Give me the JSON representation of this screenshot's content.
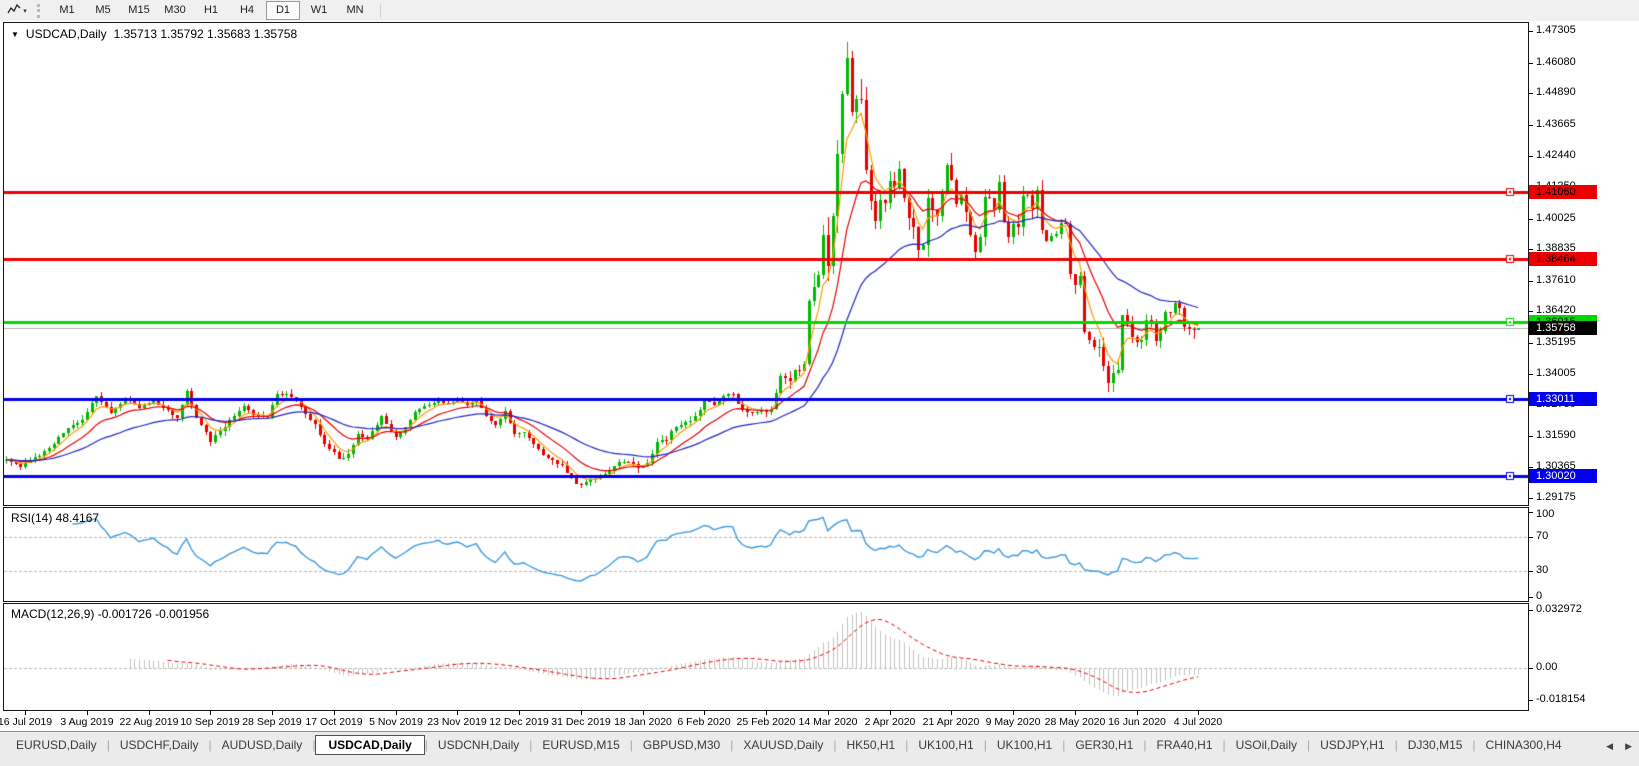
{
  "toolbar": {
    "chart_type_icon": "line-chart-icon",
    "dropdown_icon": "chevron-down-icon",
    "periods": [
      "M1",
      "M5",
      "M15",
      "M30",
      "H1",
      "H4",
      "D1",
      "W1",
      "MN"
    ],
    "active_period": "D1"
  },
  "chart_header": {
    "collapse_icon": "triangle-down-icon",
    "title": "USDCAD,Daily",
    "ohlc": "1.35713 1.35792 1.35683 1.35758"
  },
  "price_axis": {
    "ticks": [
      "1.47305",
      "1.46080",
      "1.44890",
      "1.43665",
      "1.42440",
      "1.41250",
      "1.40025",
      "1.38835",
      "1.37610",
      "1.36420",
      "1.35195",
      "1.34005",
      "1.32780",
      "1.31590",
      "1.30365",
      "1.29175"
    ],
    "badges": [
      {
        "text": "1.41060",
        "value": 1.4106,
        "bg": "#ef0000",
        "fg": "#000000"
      },
      {
        "text": "1.38464",
        "value": 1.38464,
        "bg": "#ef0000",
        "fg": "#000000"
      },
      {
        "text": "1.36015",
        "value": 1.36015,
        "bg": "#00d800",
        "fg": "#000000"
      },
      {
        "text": "1.35758",
        "value": 1.35758,
        "bg": "#000000",
        "fg": "#ffffff"
      },
      {
        "text": "1.33011",
        "value": 1.33011,
        "bg": "#0000ee",
        "fg": "#ffffff"
      },
      {
        "text": "1.30020",
        "value": 1.3002,
        "bg": "#0000ee",
        "fg": "#ffffff"
      }
    ]
  },
  "rsi_panel": {
    "label": "RSI(14) 48.4167",
    "value": 48.4167,
    "line_color": "#3e9ade",
    "levels": [
      70,
      30
    ],
    "axis": [
      {
        "text": "100",
        "value": 100
      },
      {
        "text": "70",
        "value": 70
      },
      {
        "text": "30",
        "value": 30
      },
      {
        "text": "0",
        "value": 0
      }
    ]
  },
  "macd_panel": {
    "label": "MACD(12,26,9) -0.001726 -0.001956",
    "macd_value": -0.001726,
    "signal_value": -0.001956,
    "histogram_color": "#c2c2c2",
    "signal_color": "#ee0000",
    "range": [
      -0.018154,
      0.032972
    ],
    "axis": [
      {
        "text": "0.032972",
        "value": 0.032972
      },
      {
        "text": "0.00",
        "value": 0
      },
      {
        "text": "-0.018154",
        "value": -0.018154
      }
    ]
  },
  "x_axis": {
    "labels": [
      "16 Jul 2019",
      "3 Aug 2019",
      "22 Aug 2019",
      "10 Sep 2019",
      "28 Sep 2019",
      "17 Oct 2019",
      "5 Nov 2019",
      "23 Nov 2019",
      "12 Dec 2019",
      "31 Dec 2019",
      "18 Jan 2020",
      "6 Feb 2020",
      "25 Feb 2020",
      "14 Mar 2020",
      "2 Apr 2020",
      "21 Apr 2020",
      "9 May 2020",
      "28 May 2020",
      "16 Jun 2020",
      "4 Jul 2020"
    ]
  },
  "tabs": {
    "items": [
      "EURUSD,Daily",
      "USDCHF,Daily",
      "AUDUSD,Daily",
      "USDCAD,Daily",
      "USDCNH,Daily",
      "EURUSD,M15",
      "GBPUSD,M30",
      "XAUUSD,Daily",
      "HK50,H1",
      "UK100,H1",
      "UK100,H1",
      "GER30,H1",
      "FRA40,H1",
      "USOil,Daily",
      "USDJPY,H1",
      "DJ30,M15",
      "CHINA300,H4"
    ],
    "active_index": 3,
    "scroll_left_icon": "arrow-left-icon",
    "scroll_right_icon": "arrow-right-icon"
  },
  "chart_data": {
    "type": "candlestick",
    "symbol": "USDCAD",
    "timeframe": "Daily",
    "last_ohlc": {
      "open": 1.35713,
      "high": 1.35792,
      "low": 1.35683,
      "close": 1.35758
    },
    "y_range": [
      1.28905,
      1.47614
    ],
    "n_candles": 252,
    "x_label_first_index": 4,
    "x_label_step": 13,
    "bull_color": "#00b800",
    "bear_color": "#e60000",
    "current_price": 1.35758,
    "current_price_line_color": "#b0b0b0",
    "hlines": [
      {
        "value": 1.4106,
        "color": "#ef0000",
        "width": 3
      },
      {
        "value": 1.38464,
        "color": "#ef0000",
        "width": 3
      },
      {
        "value": 1.36015,
        "color": "#00d800",
        "width": 3
      },
      {
        "value": 1.33011,
        "color": "#0000ee",
        "width": 3
      },
      {
        "value": 1.3002,
        "color": "#0000ee",
        "width": 3
      }
    ],
    "moving_averages": [
      {
        "type": "ema",
        "period": 5,
        "color": "#ff9a00"
      },
      {
        "type": "ema",
        "period": 13,
        "color": "#e60000"
      },
      {
        "type": "ema",
        "period": 34,
        "color": "#2424c8"
      }
    ],
    "indicators": [
      {
        "name": "RSI",
        "period": 14,
        "last": 48.4167
      },
      {
        "name": "MACD",
        "fast": 12,
        "slow": 26,
        "signal": 9,
        "last_macd": -0.001726,
        "last_signal": -0.001956
      }
    ],
    "spikes": [
      {
        "index": 177,
        "high": 1.4668
      },
      {
        "index": 232,
        "low": 1.333
      }
    ],
    "close_waypoints": [
      [
        0,
        1.3065
      ],
      [
        3,
        1.304
      ],
      [
        6,
        1.307
      ],
      [
        10,
        1.313
      ],
      [
        13,
        1.319
      ],
      [
        16,
        1.322
      ],
      [
        19,
        1.331
      ],
      [
        22,
        1.325
      ],
      [
        25,
        1.3305
      ],
      [
        28,
        1.327
      ],
      [
        31,
        1.33
      ],
      [
        34,
        1.3255
      ],
      [
        36,
        1.323
      ],
      [
        38,
        1.3335
      ],
      [
        40,
        1.323
      ],
      [
        43,
        1.314
      ],
      [
        45,
        1.3175
      ],
      [
        48,
        1.324
      ],
      [
        50,
        1.327
      ],
      [
        52,
        1.324
      ],
      [
        55,
        1.323
      ],
      [
        57,
        1.332
      ],
      [
        59,
        1.332
      ],
      [
        61,
        1.33
      ],
      [
        63,
        1.324
      ],
      [
        65,
        1.32
      ],
      [
        67,
        1.313
      ],
      [
        70,
        1.307
      ],
      [
        72,
        1.3085
      ],
      [
        74,
        1.316
      ],
      [
        76,
        1.3145
      ],
      [
        79,
        1.323
      ],
      [
        82,
        1.3155
      ],
      [
        84,
        1.319
      ],
      [
        86,
        1.325
      ],
      [
        88,
        1.327
      ],
      [
        91,
        1.33
      ],
      [
        93,
        1.328
      ],
      [
        95,
        1.33
      ],
      [
        97,
        1.328
      ],
      [
        99,
        1.3295
      ],
      [
        101,
        1.324
      ],
      [
        103,
        1.32
      ],
      [
        105,
        1.3255
      ],
      [
        107,
        1.3165
      ],
      [
        109,
        1.317
      ],
      [
        111,
        1.313
      ],
      [
        113,
        1.3085
      ],
      [
        115,
        1.3065
      ],
      [
        117,
        1.304
      ],
      [
        119,
        1.299
      ],
      [
        121,
        1.2965
      ],
      [
        123,
        1.299
      ],
      [
        125,
        1.2995
      ],
      [
        127,
        1.3025
      ],
      [
        129,
        1.3055
      ],
      [
        131,
        1.306
      ],
      [
        133,
        1.304
      ],
      [
        135,
        1.3055
      ],
      [
        137,
        1.3135
      ],
      [
        139,
        1.3145
      ],
      [
        141,
        1.32
      ],
      [
        143,
        1.321
      ],
      [
        145,
        1.323
      ],
      [
        147,
        1.329
      ],
      [
        149,
        1.328
      ],
      [
        151,
        1.3315
      ],
      [
        153,
        1.332
      ],
      [
        155,
        1.3255
      ],
      [
        157,
        1.3245
      ],
      [
        159,
        1.325
      ],
      [
        161,
        1.326
      ],
      [
        163,
        1.339
      ],
      [
        164,
        1.338
      ],
      [
        165,
        1.338
      ],
      [
        166,
        1.341
      ],
      [
        167,
        1.342
      ],
      [
        168,
        1.3425
      ],
      [
        169,
        1.3685
      ],
      [
        170,
        1.373
      ],
      [
        171,
        1.377
      ],
      [
        172,
        1.3925
      ],
      [
        173,
        1.38
      ],
      [
        174,
        1.399
      ],
      [
        175,
        1.425
      ],
      [
        176,
        1.449
      ],
      [
        177,
        1.463
      ],
      [
        178,
        1.443
      ],
      [
        179,
        1.448
      ],
      [
        180,
        1.445
      ],
      [
        181,
        1.418
      ],
      [
        182,
        1.406
      ],
      [
        183,
        1.399
      ],
      [
        184,
        1.409
      ],
      [
        185,
        1.406
      ],
      [
        186,
        1.4135
      ],
      [
        187,
        1.413
      ],
      [
        188,
        1.419
      ],
      [
        189,
        1.409
      ],
      [
        190,
        1.401
      ],
      [
        191,
        1.396
      ],
      [
        192,
        1.387
      ],
      [
        193,
        1.39
      ],
      [
        194,
        1.409
      ],
      [
        195,
        1.404
      ],
      [
        196,
        1.4
      ],
      [
        197,
        1.411
      ],
      [
        198,
        1.4215
      ],
      [
        199,
        1.416
      ],
      [
        200,
        1.406
      ],
      [
        201,
        1.41
      ],
      [
        202,
        1.403
      ],
      [
        203,
        1.395
      ],
      [
        204,
        1.388
      ],
      [
        205,
        1.394
      ],
      [
        206,
        1.409
      ],
      [
        207,
        1.407
      ],
      [
        208,
        1.403
      ],
      [
        209,
        1.414
      ],
      [
        210,
        1.398
      ],
      [
        211,
        1.392
      ],
      [
        212,
        1.398
      ],
      [
        213,
        1.398
      ],
      [
        214,
        1.408
      ],
      [
        215,
        1.41
      ],
      [
        216,
        1.403
      ],
      [
        217,
        1.411
      ],
      [
        218,
        1.396
      ],
      [
        219,
        1.392
      ],
      [
        220,
        1.393
      ],
      [
        221,
        1.395
      ],
      [
        222,
        1.399
      ],
      [
        223,
        1.398
      ],
      [
        224,
        1.378
      ],
      [
        225,
        1.374
      ],
      [
        226,
        1.377
      ],
      [
        227,
        1.3565
      ],
      [
        228,
        1.3525
      ],
      [
        229,
        1.35
      ],
      [
        230,
        1.3495
      ],
      [
        231,
        1.3425
      ],
      [
        232,
        1.337
      ],
      [
        233,
        1.341
      ],
      [
        234,
        1.3415
      ],
      [
        235,
        1.362
      ],
      [
        236,
        1.36
      ],
      [
        237,
        1.3545
      ],
      [
        238,
        1.353
      ],
      [
        239,
        1.354
      ],
      [
        240,
        1.361
      ],
      [
        241,
        1.36
      ],
      [
        242,
        1.353
      ],
      [
        243,
        1.356
      ],
      [
        244,
        1.364
      ],
      [
        245,
        1.363
      ],
      [
        246,
        1.368
      ],
      [
        247,
        1.365
      ],
      [
        248,
        1.358
      ],
      [
        249,
        1.357
      ],
      [
        250,
        1.355
      ],
      [
        251,
        1.35758
      ]
    ],
    "volatility_waypoints": [
      [
        0,
        0.0045
      ],
      [
        30,
        0.004
      ],
      [
        60,
        0.0045
      ],
      [
        90,
        0.0035
      ],
      [
        120,
        0.004
      ],
      [
        150,
        0.0045
      ],
      [
        163,
        0.006
      ],
      [
        169,
        0.011
      ],
      [
        174,
        0.017
      ],
      [
        179,
        0.019
      ],
      [
        184,
        0.014
      ],
      [
        190,
        0.011
      ],
      [
        200,
        0.011
      ],
      [
        210,
        0.009
      ],
      [
        220,
        0.008
      ],
      [
        227,
        0.009
      ],
      [
        232,
        0.01
      ],
      [
        235,
        0.009
      ],
      [
        240,
        0.006
      ],
      [
        251,
        0.0055
      ]
    ]
  }
}
